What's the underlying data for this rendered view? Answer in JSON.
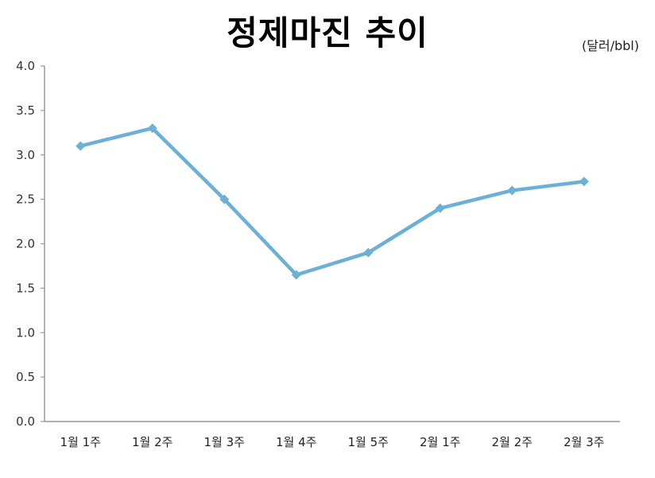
{
  "title": "정제마진 추이",
  "unit_label": "(달러/bbl)",
  "colors": {
    "line": "#6CB0D5",
    "axis": "#999999"
  },
  "chart_data": {
    "type": "line",
    "title": "정제마진 추이",
    "xlabel": "",
    "ylabel": "(달러/bbl)",
    "categories": [
      "1월 1주",
      "1월 2주",
      "1월 3주",
      "1월 4주",
      "1월 5주",
      "2월 1주",
      "2월 2주",
      "2월 3주"
    ],
    "series": [
      {
        "name": "정제마진",
        "values": [
          3.1,
          3.3,
          2.5,
          1.65,
          1.9,
          2.4,
          2.6,
          2.7
        ]
      }
    ],
    "ylim": [
      0,
      4.0
    ],
    "yticks": [
      "0.0",
      "0.5",
      "1.0",
      "1.5",
      "2.0",
      "2.5",
      "3.0",
      "3.5",
      "4.0"
    ],
    "grid": false,
    "legend": "none",
    "marker": "diamond"
  }
}
